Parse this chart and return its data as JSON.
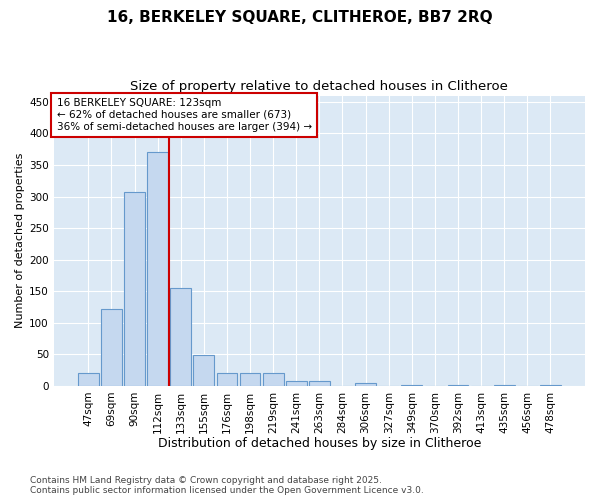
{
  "title": "16, BERKELEY SQUARE, CLITHEROE, BB7 2RQ",
  "subtitle": "Size of property relative to detached houses in Clitheroe",
  "xlabel": "Distribution of detached houses by size in Clitheroe",
  "ylabel": "Number of detached properties",
  "categories": [
    "47sqm",
    "69sqm",
    "90sqm",
    "112sqm",
    "133sqm",
    "155sqm",
    "176sqm",
    "198sqm",
    "219sqm",
    "241sqm",
    "263sqm",
    "284sqm",
    "306sqm",
    "327sqm",
    "349sqm",
    "370sqm",
    "392sqm",
    "413sqm",
    "435sqm",
    "456sqm",
    "478sqm"
  ],
  "values": [
    20,
    122,
    307,
    370,
    155,
    49,
    21,
    21,
    20,
    8,
    8,
    0,
    4,
    0,
    1,
    0,
    1,
    0,
    1,
    0,
    2
  ],
  "bar_color": "#c5d8ef",
  "bar_edge_color": "#6699cc",
  "figure_bg_color": "#ffffff",
  "plot_bg_color": "#dce9f5",
  "grid_color": "#ffffff",
  "vline_x_index": 3,
  "vline_color": "#cc0000",
  "annotation_text": "16 BERKELEY SQUARE: 123sqm\n← 62% of detached houses are smaller (673)\n36% of semi-detached houses are larger (394) →",
  "annotation_box_facecolor": "#ffffff",
  "annotation_box_edgecolor": "#cc0000",
  "ylim": [
    0,
    460
  ],
  "yticks": [
    0,
    50,
    100,
    150,
    200,
    250,
    300,
    350,
    400,
    450
  ],
  "footnote": "Contains HM Land Registry data © Crown copyright and database right 2025.\nContains public sector information licensed under the Open Government Licence v3.0.",
  "title_fontsize": 11,
  "subtitle_fontsize": 9.5,
  "xlabel_fontsize": 9,
  "ylabel_fontsize": 8,
  "tick_fontsize": 7.5,
  "annotation_fontsize": 7.5,
  "footnote_fontsize": 6.5
}
